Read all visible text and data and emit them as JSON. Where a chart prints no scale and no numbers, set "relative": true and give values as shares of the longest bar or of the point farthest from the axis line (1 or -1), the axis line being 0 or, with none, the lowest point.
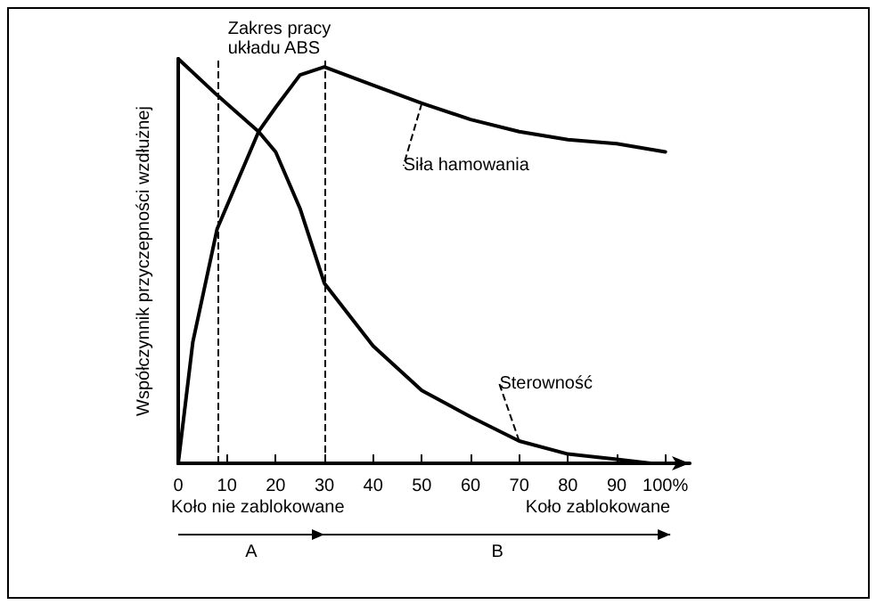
{
  "chart_data": {
    "type": "line",
    "relative": true,
    "ylabel": "Współczynnik przyczepności wzdłużnej",
    "xlim": [
      0,
      105
    ],
    "xticks": [
      0,
      10,
      20,
      30,
      40,
      50,
      60,
      70,
      80,
      90,
      {
        "value": 100,
        "label": "100%"
      }
    ],
    "tick_labels": "x",
    "grid": false,
    "legend": false,
    "marker": "none",
    "line_style": "solid",
    "series": [
      {
        "name": "Siła hamowania",
        "color": "#000000",
        "x": [
          0,
          3,
          8,
          16.5,
          20,
          25,
          30,
          40,
          50,
          60,
          70,
          80,
          90,
          100
        ],
        "values": [
          0,
          0.3,
          0.58,
          0.82,
          0.88,
          0.96,
          0.98,
          0.935,
          0.89,
          0.85,
          0.82,
          0.8,
          0.79,
          0.77
        ]
      },
      {
        "name": "Sterowność",
        "color": "#000000",
        "x": [
          0,
          8,
          16.5,
          20,
          25,
          30,
          40,
          50,
          60,
          70,
          80,
          90,
          97
        ],
        "values": [
          1,
          0.91,
          0.82,
          0.77,
          0.63,
          0.445,
          0.29,
          0.18,
          0.115,
          0.055,
          0.023,
          0.01,
          0
        ]
      }
    ],
    "ref_lines": [
      {
        "axis": "x",
        "value": 8,
        "line_style": "dashed",
        "color": "#000000"
      },
      {
        "axis": "x",
        "value": 30,
        "line_style": "dashed",
        "color": "#000000"
      }
    ],
    "annotations": [
      "Zakres pracy układu ABS",
      "Koło nie zablokowane",
      "Koło zablokowane",
      "A",
      "B"
    ]
  }
}
